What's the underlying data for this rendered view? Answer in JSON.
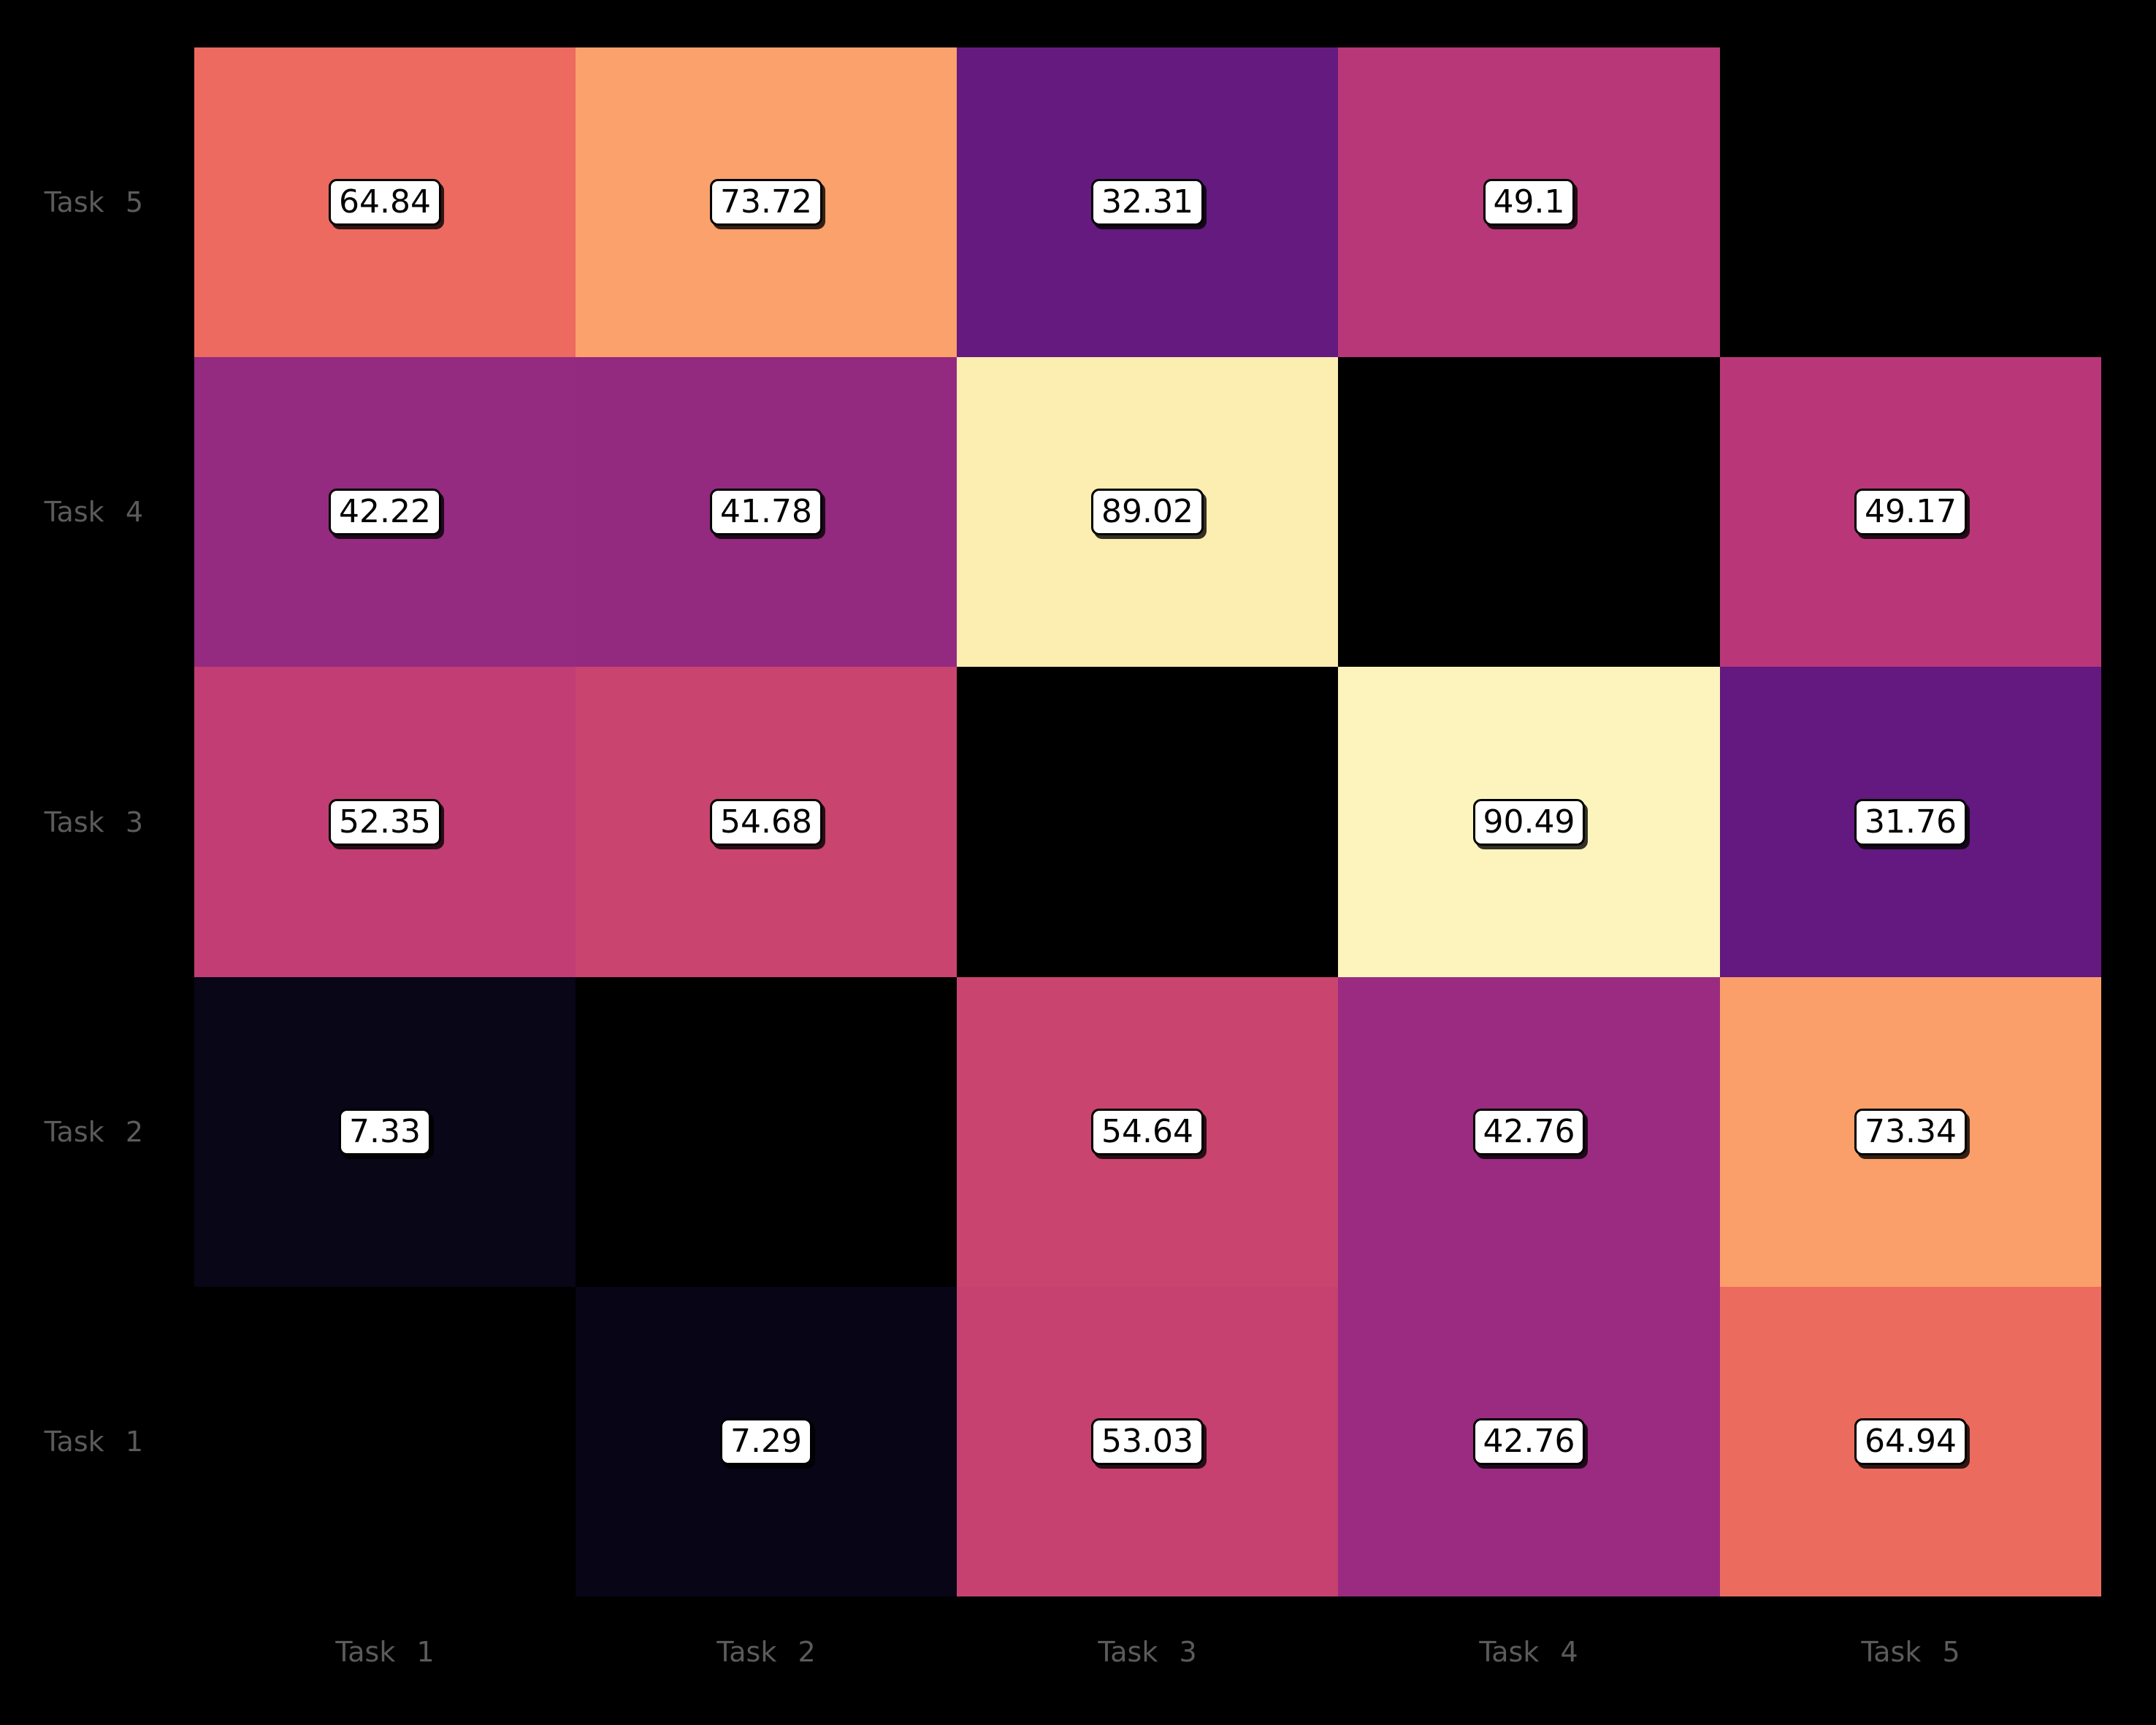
{
  "figure": {
    "background_color": "#000000",
    "tick_label_color": "#5b5b5b",
    "value_box_bg": "#ffffff",
    "value_box_border": "#000000",
    "value_text_color": "#000000"
  },
  "chart_data": {
    "type": "heatmap",
    "title": "",
    "xlabel": "",
    "ylabel": "",
    "colormap": "magma",
    "value_range": [
      0,
      100
    ],
    "grid": false,
    "x_categories": [
      "Task 1",
      "Task 2",
      "Task 3",
      "Task 4",
      "Task 5"
    ],
    "y_categories_top_to_bottom": [
      "Task 5",
      "Task 4",
      "Task 3",
      "Task 2",
      "Task 1"
    ],
    "matrix_rows_top_to_bottom": [
      [
        64.84,
        73.72,
        32.31,
        49.1,
        null
      ],
      [
        42.22,
        41.78,
        89.02,
        null,
        49.17
      ],
      [
        52.35,
        54.68,
        null,
        90.49,
        31.76
      ],
      [
        7.33,
        null,
        54.64,
        42.76,
        73.34
      ],
      [
        null,
        7.29,
        53.03,
        42.76,
        64.94
      ]
    ],
    "cell_labels": [
      [
        "64.84",
        "73.72",
        "32.31",
        "49.1",
        null
      ],
      [
        "42.22",
        "41.78",
        "89.02",
        null,
        "49.17"
      ],
      [
        "52.35",
        "54.68",
        null,
        "90.49",
        "31.76"
      ],
      [
        "7.33",
        null,
        "54.64",
        "42.76",
        "73.34"
      ],
      [
        null,
        "7.29",
        "53.03",
        "42.76",
        "64.94"
      ]
    ],
    "cell_colors": [
      [
        "#ec6a5f",
        "#fba16c",
        "#651a80",
        "#b83778",
        null
      ],
      [
        "#952a81",
        "#942980",
        "#fcedb0",
        null,
        "#b93778"
      ],
      [
        "#c23d74",
        "#ca4470",
        null,
        "#fcf4bc",
        "#631980"
      ],
      [
        "#080617",
        null,
        "#ca4470",
        "#9a2b80",
        "#fb9f6a"
      ],
      [
        null,
        "#070516",
        "#c64170",
        "#9a2b80",
        "#ec6b5f"
      ]
    ]
  }
}
